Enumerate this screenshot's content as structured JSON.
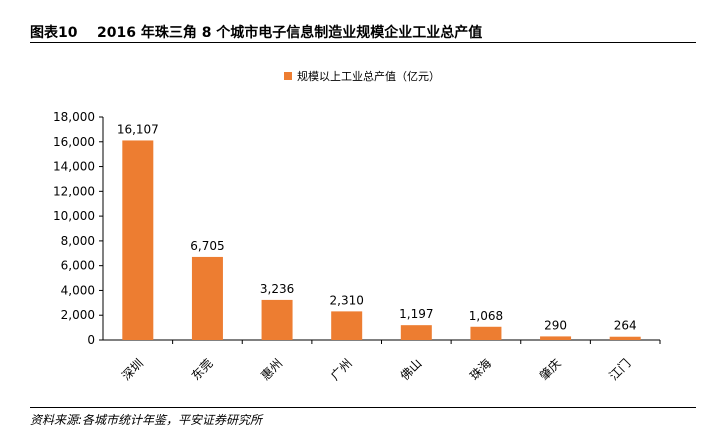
{
  "header": {
    "figure_number": "图表10",
    "title": "2016 年珠三角 8 个城市电子信息制造业规模企业工业总产值"
  },
  "source": "资料来源:各城市统计年鉴，平安证券研究所",
  "chart_data": {
    "type": "bar",
    "categories": [
      "深圳",
      "东莞",
      "惠州",
      "广州",
      "佛山",
      "珠海",
      "肇庆",
      "江门"
    ],
    "series": [
      {
        "name": "规模以上工业总产值（亿元）",
        "values": [
          16107,
          6705,
          3236,
          2310,
          1197,
          1068,
          290,
          264
        ]
      }
    ],
    "data_labels": [
      "16,107",
      "6,705",
      "3,236",
      "2,310",
      "1,197",
      "1,068",
      "290",
      "264"
    ],
    "yticks": [
      "0",
      "2,000",
      "4,000",
      "6,000",
      "8,000",
      "10,000",
      "12,000",
      "14,000",
      "16,000",
      "18,000"
    ],
    "ylim": [
      0,
      18000
    ],
    "ytick_step": 2000,
    "grid": false,
    "legend_position": "top",
    "bar_color": "#ED7D31"
  }
}
